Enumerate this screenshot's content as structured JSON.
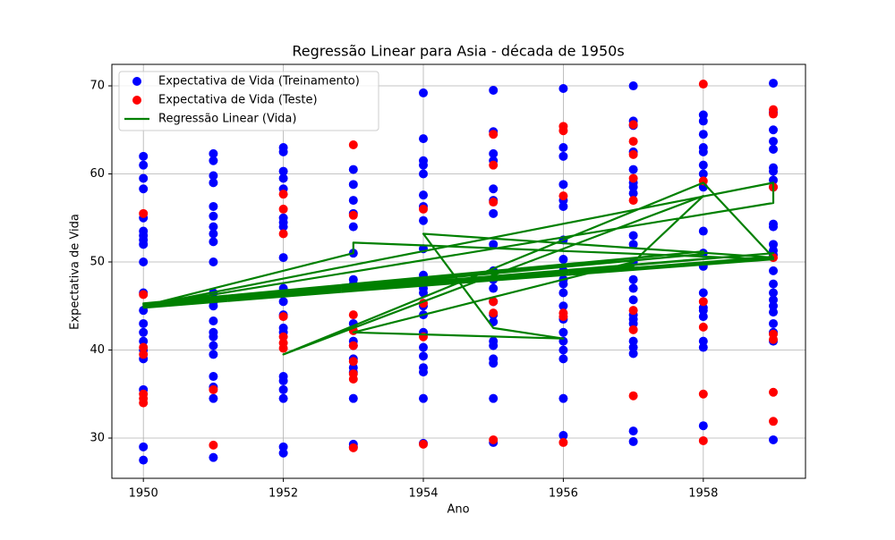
{
  "chart_data": {
    "type": "scatter",
    "title": "Regressão Linear para Asia - década de 1950s",
    "x_label": "Ano",
    "y_label": "Expectativa de Vida",
    "xlim": [
      1949.55,
      1959.46
    ],
    "ylim": [
      25.43,
      72.44
    ],
    "xticks": [
      1950,
      1952,
      1954,
      1956,
      1958
    ],
    "yticks": [
      30,
      40,
      50,
      60,
      70
    ],
    "grid": true,
    "legend": "upper-left",
    "series": [
      {
        "name": "Expectativa de Vida (Treinamento)",
        "color": "#0000ff",
        "type": "scatter",
        "x": [
          1950,
          1950,
          1950,
          1950,
          1950,
          1950,
          1950,
          1950,
          1950,
          1950,
          1950,
          1950,
          1950,
          1950,
          1950,
          1950,
          1950,
          1950,
          1950,
          1950,
          1951,
          1951,
          1951,
          1951,
          1951,
          1951,
          1951,
          1951,
          1951,
          1951,
          1951,
          1951,
          1951,
          1951,
          1951,
          1951,
          1951,
          1951,
          1951,
          1951,
          1951,
          1951,
          1952,
          1952,
          1952,
          1952,
          1952,
          1952,
          1952,
          1952,
          1952,
          1952,
          1952,
          1952,
          1952,
          1952,
          1952,
          1952,
          1952,
          1952,
          1952,
          1952,
          1953,
          1953,
          1953,
          1953,
          1953,
          1953,
          1953,
          1953,
          1953,
          1953,
          1953,
          1953,
          1953,
          1953,
          1953,
          1953,
          1953,
          1954,
          1954,
          1954,
          1954,
          1954,
          1954,
          1954,
          1954,
          1954,
          1954,
          1954,
          1954,
          1954,
          1954,
          1954,
          1954,
          1954,
          1954,
          1954,
          1954,
          1954,
          1955,
          1955,
          1955,
          1955,
          1955,
          1955,
          1955,
          1955,
          1955,
          1955,
          1955,
          1955,
          1955,
          1955,
          1955,
          1955,
          1955,
          1955,
          1955,
          1955,
          1956,
          1956,
          1956,
          1956,
          1956,
          1956,
          1956,
          1956,
          1956,
          1956,
          1956,
          1956,
          1956,
          1956,
          1956,
          1956,
          1956,
          1956,
          1956,
          1956,
          1957,
          1957,
          1957,
          1957,
          1957,
          1957,
          1957,
          1957,
          1957,
          1957,
          1957,
          1957,
          1957,
          1957,
          1957,
          1957,
          1957,
          1957,
          1957,
          1957,
          1957,
          1957,
          1958,
          1958,
          1958,
          1958,
          1958,
          1958,
          1958,
          1958,
          1958,
          1958,
          1958,
          1958,
          1958,
          1958,
          1958,
          1958,
          1958,
          1958,
          1959,
          1959,
          1959,
          1959,
          1959,
          1959,
          1959,
          1959,
          1959,
          1959,
          1959,
          1959,
          1959,
          1959,
          1959,
          1959,
          1959,
          1959,
          1959,
          1959,
          1959,
          1959,
          1959,
          1959
        ],
        "values": [
          62,
          61,
          59.5,
          58.3,
          55,
          53.5,
          53,
          52.5,
          52,
          50,
          46.5,
          44.5,
          43,
          42,
          41,
          40,
          39,
          35.5,
          29,
          27.5,
          62.3,
          61.5,
          59.8,
          59,
          56.3,
          55.2,
          54,
          53.2,
          52.3,
          50,
          46.5,
          45.5,
          45,
          43.3,
          42,
          41.5,
          40.5,
          39.5,
          37,
          35.8,
          34.5,
          27.8,
          63,
          62.5,
          60.3,
          59.5,
          58.3,
          55,
          54.5,
          54,
          50.5,
          47,
          45.5,
          44,
          42.5,
          42,
          37,
          36.5,
          35.5,
          34.5,
          29,
          28.3,
          60.5,
          58.8,
          57,
          55.5,
          54,
          51,
          48,
          47.5,
          43,
          41,
          40.5,
          39,
          38,
          37.5,
          34.5,
          29.3,
          29,
          69.2,
          64,
          61.5,
          61,
          60,
          57.6,
          56.3,
          54.7,
          51.5,
          48.5,
          47,
          46.5,
          45,
          44,
          42,
          40.3,
          39.3,
          38,
          37.5,
          34.5,
          29.4,
          69.5,
          64.8,
          62.3,
          61.5,
          58.3,
          57,
          55.5,
          52,
          49,
          48,
          47,
          45.5,
          44,
          43.2,
          41,
          40.5,
          39,
          38.5,
          34.5,
          29.5,
          69.7,
          63,
          62,
          58.8,
          57,
          56.3,
          52.5,
          50.3,
          49,
          48,
          47.5,
          46.5,
          45,
          43.5,
          42,
          41,
          40,
          39,
          34.5,
          30.3,
          70,
          66,
          65.5,
          62.5,
          60.5,
          59,
          58.5,
          57.8,
          53,
          52,
          50,
          48,
          47,
          45.7,
          44,
          43.5,
          43,
          41,
          40.3,
          39.6,
          30.8,
          29.6,
          66.7,
          66,
          64.5,
          63,
          62.5,
          61,
          60,
          58.5,
          53.5,
          51,
          49.5,
          46.5,
          44.8,
          44.5,
          43.8,
          41,
          40.3,
          31.4,
          70.3,
          67,
          65,
          63.7,
          62.8,
          60.7,
          60.3,
          59.3,
          58.5,
          54.3,
          54,
          52,
          51.3,
          50.8,
          49,
          47.5,
          46.5,
          45.7,
          45,
          44.3,
          43,
          42,
          41,
          29.8
        ]
      },
      {
        "name": "Expectativa de Vida (Teste)",
        "color": "#ff0000",
        "type": "scatter",
        "x": [
          1950,
          1950,
          1950,
          1950,
          1950,
          1950,
          1950,
          1951,
          1951,
          1952,
          1952,
          1952,
          1952,
          1952,
          1952,
          1952,
          1953,
          1953,
          1953,
          1953,
          1953,
          1953,
          1953,
          1953,
          1953,
          1954,
          1954,
          1954,
          1954,
          1955,
          1955,
          1955,
          1955,
          1955,
          1955,
          1956,
          1956,
          1956,
          1956,
          1956,
          1956,
          1957,
          1957,
          1957,
          1957,
          1957,
          1957,
          1957,
          1957,
          1958,
          1958,
          1958,
          1958,
          1958,
          1958,
          1959,
          1959,
          1959,
          1959,
          1959,
          1959,
          1959,
          1959
        ],
        "values": [
          55.5,
          46.3,
          40.3,
          39.5,
          35,
          34.5,
          34,
          35.5,
          29.2,
          57.7,
          56,
          53.2,
          43.8,
          41.5,
          40.8,
          40.2,
          63.3,
          55.3,
          44,
          42.2,
          40.5,
          38.7,
          37.3,
          36.7,
          28.9,
          56,
          45.3,
          41.5,
          29.3,
          64.5,
          61,
          56.8,
          45.5,
          44.2,
          29.8,
          65.4,
          64.9,
          57.5,
          44.2,
          43.8,
          29.5,
          65.6,
          63.7,
          62.2,
          59.5,
          57,
          44.5,
          42.3,
          34.8,
          70.2,
          59.2,
          45.5,
          42.6,
          35,
          29.7,
          67.3,
          66.8,
          58.5,
          50.5,
          41.8,
          41.2,
          35.2,
          31.9
        ]
      },
      {
        "name": "Regressão Linear (Vida)",
        "color": "#008000",
        "type": "line",
        "x": [
          1950,
          1959,
          1950,
          1958,
          1950,
          1957,
          1951,
          1959,
          1953,
          1953,
          1950,
          1959,
          1959,
          1950,
          1959,
          1958,
          1952,
          1958,
          1957,
          1953,
          1956,
          1955,
          1954,
          1959,
          1950,
          1958,
          1951,
          1959,
          1950,
          1959
        ],
        "values": [
          44.8,
          50.5,
          45,
          50.9,
          45.2,
          49.5,
          45.5,
          50.3,
          52.2,
          51,
          45,
          59,
          56.7,
          45,
          50.5,
          59,
          39.5,
          57.5,
          50,
          42,
          41.3,
          42.5,
          53.2,
          50.5,
          45.3,
          51.2,
          45.8,
          51,
          44.9,
          50.6
        ]
      }
    ]
  }
}
